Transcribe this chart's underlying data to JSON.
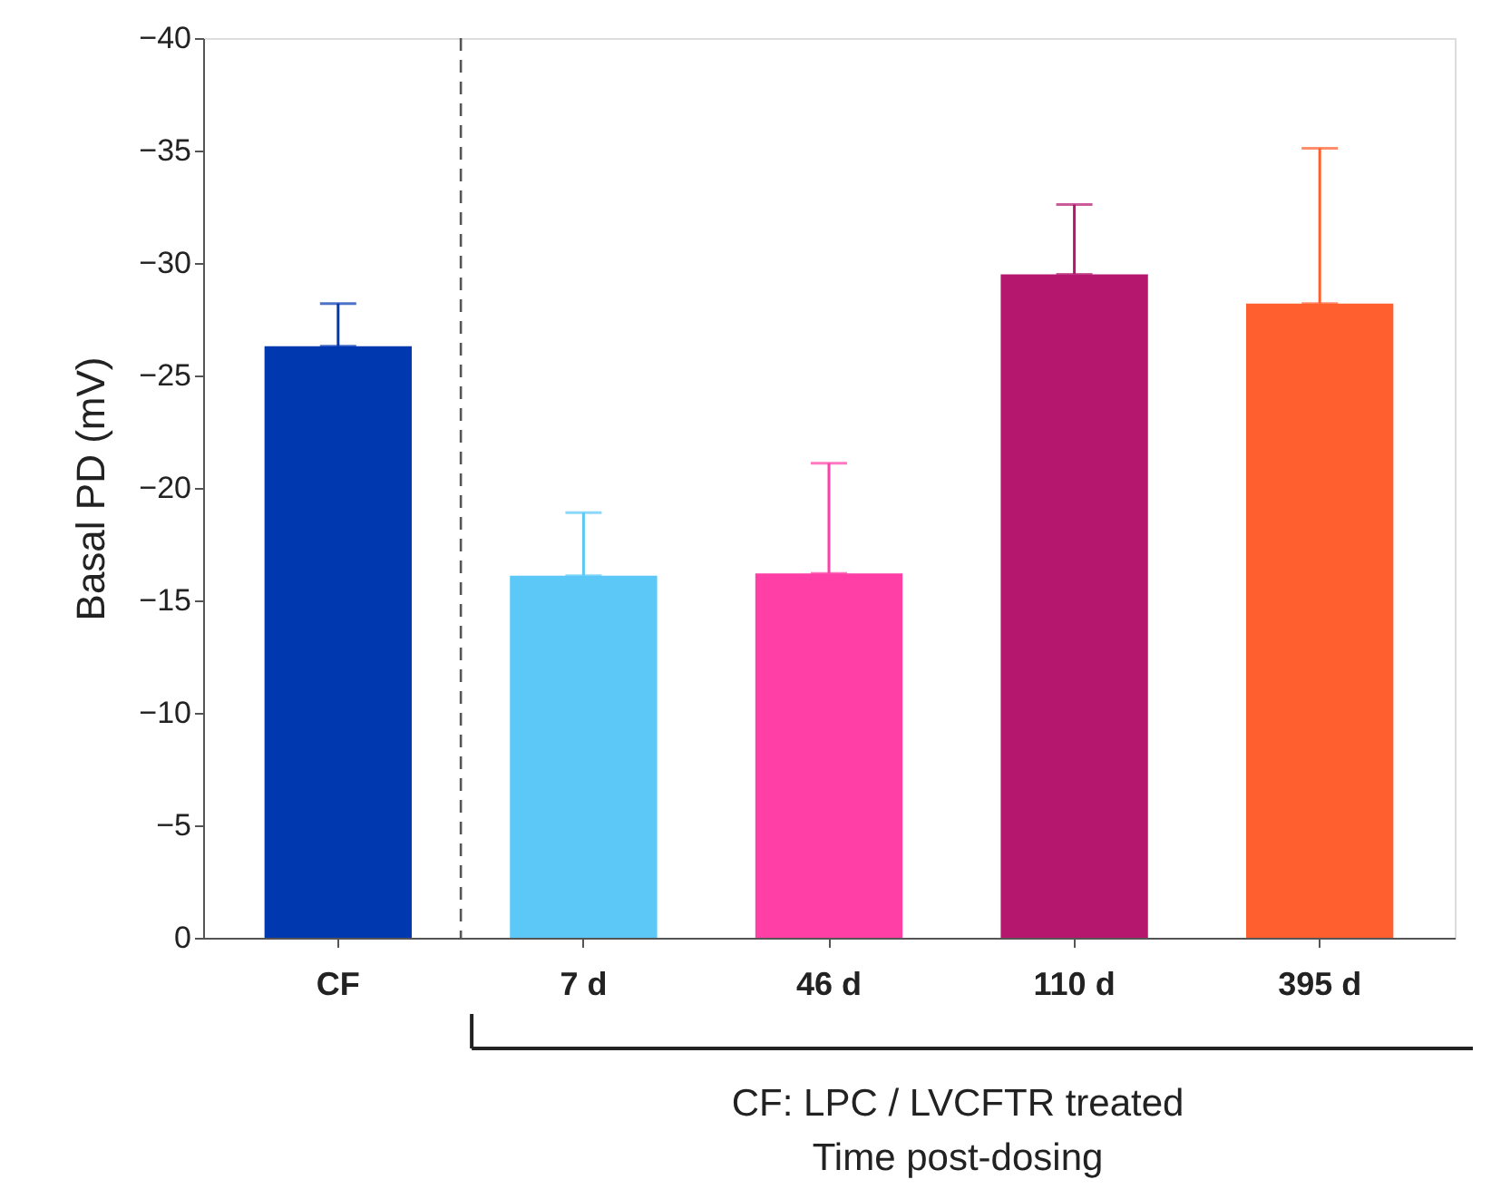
{
  "chart_data": {
    "type": "bar",
    "ylabel": "Basal PD (mV)",
    "categories": [
      "CF",
      "7 d",
      "46 d",
      "110 d",
      "395 d"
    ],
    "values": [
      -26.3,
      -16.1,
      -16.2,
      -29.5,
      -28.2
    ],
    "colors": [
      "#0038b0",
      "#5bc8f8",
      "#ff3ea6",
      "#b5176e",
      "#ff5f2e"
    ],
    "errors": [
      [
        -28.2,
        -26.3
      ],
      [
        -18.9,
        -16.1
      ],
      [
        -21.1,
        -16.2
      ],
      [
        -32.6,
        -29.5
      ],
      [
        -35.1,
        -28.2
      ]
    ],
    "ylim": [
      0,
      -40
    ],
    "yticks": [
      0,
      -5,
      -10,
      -15,
      -20,
      -25,
      -30,
      -35,
      -40
    ],
    "annotations": [
      "CF: LPC / LVCFTR treated",
      "Time post-dosing"
    ],
    "grid": false
  }
}
